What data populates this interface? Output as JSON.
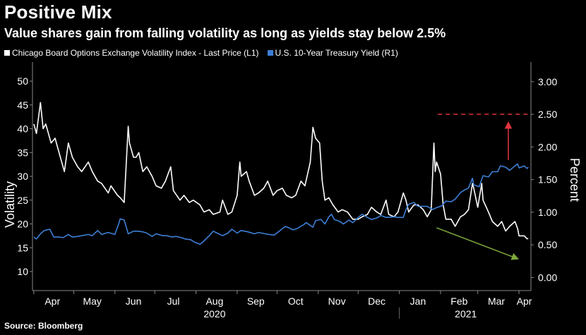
{
  "title": "Positive Mix",
  "subtitle": "Value shares gain from falling volatility as long as yields stay below 2.5%",
  "source": "Source: Bloomberg",
  "colors": {
    "background": "#000000",
    "vix": "#ffffff",
    "yield": "#3d7fd6",
    "threshold": "#e0333e",
    "up_arrow": "#e0333e",
    "down_arrow": "#7fa83a",
    "grid": "#2b2b2b"
  },
  "chart_data": {
    "type": "line",
    "legend": [
      {
        "name": "Chicago Board Options Exchange Volatility Index - Last Price (L1)",
        "color": "#ffffff"
      },
      {
        "name": "U.S. 10-Year Treasury Yield (R1)",
        "color": "#3d7fd6"
      }
    ],
    "legend_position": "top-left",
    "ylabel_left": "Volatility",
    "ylabel_right": "Percent",
    "ylim_left": [
      6,
      54
    ],
    "yticks_left": [
      10,
      15,
      20,
      25,
      30,
      35,
      40,
      45,
      50
    ],
    "ylim_right": [
      -0.2,
      3.3
    ],
    "yticks_right": [
      "0.00",
      "0.50",
      "1.00",
      "1.50",
      "2.00",
      "2.50",
      "3.00"
    ],
    "xlim": [
      "2020-03-31",
      "2021-04-10"
    ],
    "month_labels": [
      {
        "label": "Apr",
        "date": "2020-04-15"
      },
      {
        "label": "May",
        "date": "2020-05-15"
      },
      {
        "label": "Jun",
        "date": "2020-06-15"
      },
      {
        "label": "Jul",
        "date": "2020-07-15"
      },
      {
        "label": "Aug",
        "date": "2020-08-15"
      },
      {
        "label": "Sep",
        "date": "2020-09-15"
      },
      {
        "label": "Oct",
        "date": "2020-10-15"
      },
      {
        "label": "Nov",
        "date": "2020-11-15"
      },
      {
        "label": "Dec",
        "date": "2020-12-15"
      },
      {
        "label": "Jan",
        "date": "2021-01-15"
      },
      {
        "label": "Feb",
        "date": "2021-02-15"
      },
      {
        "label": "Mar",
        "date": "2021-03-15"
      },
      {
        "label": "Apr",
        "date": "2021-04-05"
      }
    ],
    "year_labels": [
      {
        "label": "2020",
        "date": "2020-08-15"
      },
      {
        "label": "2021",
        "date": "2021-02-20"
      }
    ],
    "grid": false,
    "series": [
      {
        "name": "Chicago Board Options Exchange Volatility Index - Last Price (L1)",
        "axis": "left",
        "points": [
          [
            "2020-04-01",
            41
          ],
          [
            "2020-04-03",
            39
          ],
          [
            "2020-04-06",
            45.5
          ],
          [
            "2020-04-08",
            40
          ],
          [
            "2020-04-10",
            41
          ],
          [
            "2020-04-14",
            37
          ],
          [
            "2020-04-17",
            38
          ],
          [
            "2020-04-21",
            34
          ],
          [
            "2020-04-24",
            31
          ],
          [
            "2020-04-27",
            37
          ],
          [
            "2020-04-30",
            34
          ],
          [
            "2020-05-04",
            32
          ],
          [
            "2020-05-07",
            31
          ],
          [
            "2020-05-12",
            33
          ],
          [
            "2020-05-15",
            31
          ],
          [
            "2020-05-19",
            29
          ],
          [
            "2020-05-22",
            28.5
          ],
          [
            "2020-05-27",
            26.5
          ],
          [
            "2020-05-29",
            28
          ],
          [
            "2020-06-03",
            26
          ],
          [
            "2020-06-05",
            25.5
          ],
          [
            "2020-06-08",
            24.5
          ],
          [
            "2020-06-11",
            40.5
          ],
          [
            "2020-06-12",
            37
          ],
          [
            "2020-06-15",
            34
          ],
          [
            "2020-06-17",
            34
          ],
          [
            "2020-06-19",
            35
          ],
          [
            "2020-06-22",
            31
          ],
          [
            "2020-06-25",
            32
          ],
          [
            "2020-06-29",
            30
          ],
          [
            "2020-07-02",
            28
          ],
          [
            "2020-07-06",
            27.5
          ],
          [
            "2020-07-09",
            29
          ],
          [
            "2020-07-13",
            32
          ],
          [
            "2020-07-15",
            27
          ],
          [
            "2020-07-20",
            25
          ],
          [
            "2020-07-23",
            26
          ],
          [
            "2020-07-27",
            24.5
          ],
          [
            "2020-07-30",
            25
          ],
          [
            "2020-08-04",
            24
          ],
          [
            "2020-08-07",
            22.5
          ],
          [
            "2020-08-11",
            23
          ],
          [
            "2020-08-14",
            22
          ],
          [
            "2020-08-19",
            22.5
          ],
          [
            "2020-08-21",
            25
          ],
          [
            "2020-08-25",
            22
          ],
          [
            "2020-08-28",
            22.5
          ],
          [
            "2020-09-01",
            26
          ],
          [
            "2020-09-03",
            33
          ],
          [
            "2020-09-04",
            30
          ],
          [
            "2020-09-08",
            31
          ],
          [
            "2020-09-10",
            29
          ],
          [
            "2020-09-14",
            26
          ],
          [
            "2020-09-17",
            26.5
          ],
          [
            "2020-09-21",
            27.5
          ],
          [
            "2020-09-24",
            29
          ],
          [
            "2020-09-28",
            26
          ],
          [
            "2020-10-01",
            27
          ],
          [
            "2020-10-05",
            27.5
          ],
          [
            "2020-10-08",
            26
          ],
          [
            "2020-10-12",
            25.5
          ],
          [
            "2020-10-15",
            26
          ],
          [
            "2020-10-19",
            29
          ],
          [
            "2020-10-22",
            28
          ],
          [
            "2020-10-26",
            33
          ],
          [
            "2020-10-28",
            40.3
          ],
          [
            "2020-10-30",
            38
          ],
          [
            "2020-11-02",
            37
          ],
          [
            "2020-11-04",
            29
          ],
          [
            "2020-11-06",
            25
          ],
          [
            "2020-11-09",
            25.5
          ],
          [
            "2020-11-12",
            24
          ],
          [
            "2020-11-16",
            22.5
          ],
          [
            "2020-11-19",
            23
          ],
          [
            "2020-11-23",
            22.5
          ],
          [
            "2020-11-27",
            21
          ],
          [
            "2020-12-01",
            21
          ],
          [
            "2020-12-04",
            21.5
          ],
          [
            "2020-12-08",
            22
          ],
          [
            "2020-12-11",
            23.5
          ],
          [
            "2020-12-15",
            22.5
          ],
          [
            "2020-12-18",
            22
          ],
          [
            "2020-12-22",
            25
          ],
          [
            "2020-12-24",
            22
          ],
          [
            "2020-12-28",
            21.5
          ],
          [
            "2020-12-31",
            22.5
          ],
          [
            "2021-01-04",
            26.5
          ],
          [
            "2021-01-06",
            25
          ],
          [
            "2021-01-08",
            22.5
          ],
          [
            "2021-01-12",
            24
          ],
          [
            "2021-01-15",
            24
          ],
          [
            "2021-01-19",
            23
          ],
          [
            "2021-01-22",
            21.5
          ],
          [
            "2021-01-25",
            23
          ],
          [
            "2021-01-27",
            37
          ],
          [
            "2021-01-28",
            31
          ],
          [
            "2021-01-29",
            33
          ],
          [
            "2021-02-01",
            30.5
          ],
          [
            "2021-02-03",
            24
          ],
          [
            "2021-02-05",
            21
          ],
          [
            "2021-02-09",
            21
          ],
          [
            "2021-02-12",
            19.5
          ],
          [
            "2021-02-16",
            21.5
          ],
          [
            "2021-02-19",
            22
          ],
          [
            "2021-02-22",
            23
          ],
          [
            "2021-02-25",
            28.5
          ],
          [
            "2021-02-26",
            27.5
          ],
          [
            "2021-03-01",
            23.5
          ],
          [
            "2021-03-04",
            28.5
          ],
          [
            "2021-03-05",
            25
          ],
          [
            "2021-03-09",
            22.5
          ],
          [
            "2021-03-12",
            20.5
          ],
          [
            "2021-03-16",
            19.5
          ],
          [
            "2021-03-19",
            20.5
          ],
          [
            "2021-03-22",
            18.5
          ],
          [
            "2021-03-25",
            19.5
          ],
          [
            "2021-03-29",
            20.5
          ],
          [
            "2021-03-31",
            19
          ],
          [
            "2021-04-01",
            17.5
          ],
          [
            "2021-04-05",
            17.5
          ],
          [
            "2021-04-07",
            16.9
          ],
          [
            "2021-04-08",
            16.9
          ]
        ]
      },
      {
        "name": "U.S. 10-Year Treasury Yield (R1)",
        "axis": "right",
        "points": [
          [
            "2020-04-01",
            0.62
          ],
          [
            "2020-04-03",
            0.59
          ],
          [
            "2020-04-06",
            0.67
          ],
          [
            "2020-04-09",
            0.72
          ],
          [
            "2020-04-13",
            0.74
          ],
          [
            "2020-04-16",
            0.62
          ],
          [
            "2020-04-20",
            0.62
          ],
          [
            "2020-04-23",
            0.61
          ],
          [
            "2020-04-27",
            0.66
          ],
          [
            "2020-04-30",
            0.62
          ],
          [
            "2020-05-04",
            0.63
          ],
          [
            "2020-05-07",
            0.64
          ],
          [
            "2020-05-12",
            0.66
          ],
          [
            "2020-05-15",
            0.64
          ],
          [
            "2020-05-19",
            0.72
          ],
          [
            "2020-05-22",
            0.66
          ],
          [
            "2020-05-27",
            0.69
          ],
          [
            "2020-06-01",
            0.66
          ],
          [
            "2020-06-04",
            0.83
          ],
          [
            "2020-06-05",
            0.9
          ],
          [
            "2020-06-08",
            0.88
          ],
          [
            "2020-06-11",
            0.67
          ],
          [
            "2020-06-15",
            0.71
          ],
          [
            "2020-06-18",
            0.71
          ],
          [
            "2020-06-22",
            0.7
          ],
          [
            "2020-06-25",
            0.68
          ],
          [
            "2020-06-29",
            0.63
          ],
          [
            "2020-07-02",
            0.67
          ],
          [
            "2020-07-07",
            0.64
          ],
          [
            "2020-07-10",
            0.64
          ],
          [
            "2020-07-14",
            0.62
          ],
          [
            "2020-07-17",
            0.63
          ],
          [
            "2020-07-21",
            0.61
          ],
          [
            "2020-07-24",
            0.59
          ],
          [
            "2020-07-28",
            0.58
          ],
          [
            "2020-07-31",
            0.54
          ],
          [
            "2020-08-04",
            0.51
          ],
          [
            "2020-08-06",
            0.54
          ],
          [
            "2020-08-11",
            0.64
          ],
          [
            "2020-08-14",
            0.71
          ],
          [
            "2020-08-18",
            0.67
          ],
          [
            "2020-08-21",
            0.64
          ],
          [
            "2020-08-25",
            0.68
          ],
          [
            "2020-08-28",
            0.74
          ],
          [
            "2020-09-01",
            0.68
          ],
          [
            "2020-09-04",
            0.72
          ],
          [
            "2020-09-09",
            0.7
          ],
          [
            "2020-09-14",
            0.67
          ],
          [
            "2020-09-17",
            0.69
          ],
          [
            "2020-09-22",
            0.67
          ],
          [
            "2020-09-25",
            0.66
          ],
          [
            "2020-09-29",
            0.65
          ],
          [
            "2020-10-02",
            0.7
          ],
          [
            "2020-10-07",
            0.78
          ],
          [
            "2020-10-09",
            0.77
          ],
          [
            "2020-10-13",
            0.73
          ],
          [
            "2020-10-16",
            0.75
          ],
          [
            "2020-10-21",
            0.81
          ],
          [
            "2020-10-23",
            0.84
          ],
          [
            "2020-10-28",
            0.77
          ],
          [
            "2020-10-30",
            0.87
          ],
          [
            "2020-11-03",
            0.89
          ],
          [
            "2020-11-06",
            0.82
          ],
          [
            "2020-11-09",
            0.93
          ],
          [
            "2020-11-11",
            0.97
          ],
          [
            "2020-11-13",
            0.89
          ],
          [
            "2020-11-17",
            0.86
          ],
          [
            "2020-11-20",
            0.82
          ],
          [
            "2020-11-24",
            0.88
          ],
          [
            "2020-11-27",
            0.84
          ],
          [
            "2020-12-01",
            0.92
          ],
          [
            "2020-12-04",
            0.97
          ],
          [
            "2020-12-08",
            0.92
          ],
          [
            "2020-12-11",
            0.89
          ],
          [
            "2020-12-15",
            0.91
          ],
          [
            "2020-12-18",
            0.95
          ],
          [
            "2020-12-22",
            0.92
          ],
          [
            "2020-12-28",
            0.93
          ],
          [
            "2020-12-31",
            0.92
          ],
          [
            "2021-01-04",
            0.92
          ],
          [
            "2021-01-06",
            1.04
          ],
          [
            "2021-01-08",
            1.12
          ],
          [
            "2021-01-12",
            1.15
          ],
          [
            "2021-01-15",
            1.09
          ],
          [
            "2021-01-19",
            1.09
          ],
          [
            "2021-01-22",
            1.09
          ],
          [
            "2021-01-26",
            1.04
          ],
          [
            "2021-01-29",
            1.07
          ],
          [
            "2021-02-02",
            1.1
          ],
          [
            "2021-02-05",
            1.17
          ],
          [
            "2021-02-09",
            1.16
          ],
          [
            "2021-02-12",
            1.2
          ],
          [
            "2021-02-16",
            1.3
          ],
          [
            "2021-02-19",
            1.34
          ],
          [
            "2021-02-22",
            1.37
          ],
          [
            "2021-02-25",
            1.52
          ],
          [
            "2021-02-26",
            1.42
          ],
          [
            "2021-03-02",
            1.39
          ],
          [
            "2021-03-05",
            1.56
          ],
          [
            "2021-03-09",
            1.54
          ],
          [
            "2021-03-12",
            1.62
          ],
          [
            "2021-03-16",
            1.62
          ],
          [
            "2021-03-18",
            1.71
          ],
          [
            "2021-03-22",
            1.69
          ],
          [
            "2021-03-25",
            1.64
          ],
          [
            "2021-03-29",
            1.71
          ],
          [
            "2021-03-31",
            1.74
          ],
          [
            "2021-04-01",
            1.68
          ],
          [
            "2021-04-05",
            1.71
          ],
          [
            "2021-04-07",
            1.67
          ],
          [
            "2021-04-08",
            1.69
          ]
        ]
      }
    ],
    "annotations": [
      {
        "type": "hline",
        "axis": "right",
        "y": 2.5,
        "from": "2021-01-30",
        "to": "2021-04-10",
        "style": "dashed",
        "color": "#e0333e"
      },
      {
        "type": "arrow",
        "axis": "right",
        "from": [
          "2021-03-24",
          1.8
        ],
        "to": [
          "2021-03-24",
          2.37
        ],
        "color": "#e0333e"
      },
      {
        "type": "arrow",
        "axis": "left",
        "from": [
          "2021-01-29",
          19.2
        ],
        "to": [
          "2021-03-31",
          12.7
        ],
        "color": "#7fa83a"
      }
    ]
  }
}
